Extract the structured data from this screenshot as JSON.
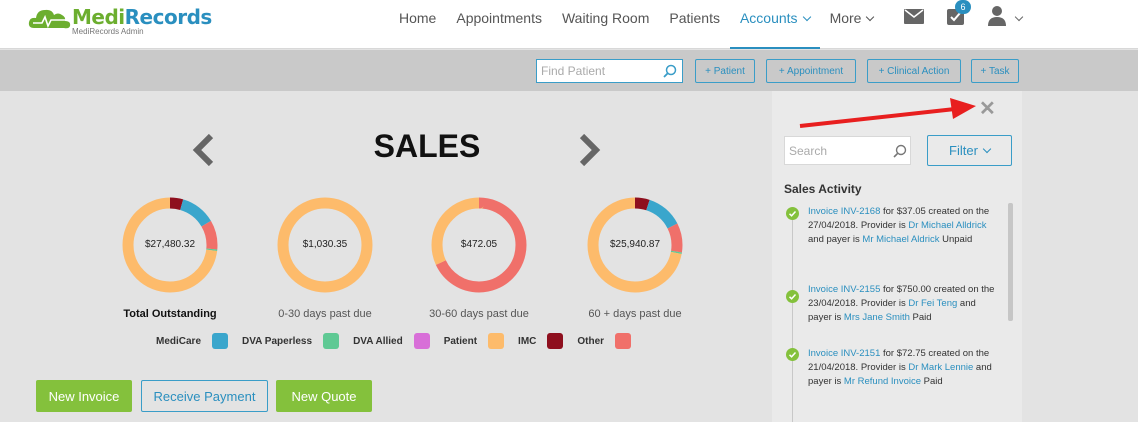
{
  "brand": {
    "name_part1": "Medi",
    "name_part2": "Records",
    "subtitle": "MediRecords Admin"
  },
  "nav": {
    "items": [
      {
        "label": "Home",
        "active": false,
        "dropdown": false
      },
      {
        "label": "Appointments",
        "active": false,
        "dropdown": false
      },
      {
        "label": "Waiting Room",
        "active": false,
        "dropdown": false
      },
      {
        "label": "Patients",
        "active": false,
        "dropdown": false
      },
      {
        "label": "Accounts",
        "active": true,
        "dropdown": true
      },
      {
        "label": "More",
        "active": false,
        "dropdown": true
      }
    ],
    "icons": [
      "mail-icon",
      "tasks-icon",
      "user-icon"
    ],
    "task_badge": "6"
  },
  "action_bar": {
    "find_placeholder": "Find Patient",
    "buttons": [
      "+ Patient",
      "+ Appointment",
      "+ Clinical Action",
      "+ Task"
    ]
  },
  "sales": {
    "title": "SALES",
    "donuts": [
      {
        "value": "$27,480.32",
        "label": "Total Outstanding",
        "bold": true,
        "segments": [
          {
            "category": "IMC",
            "fraction": 0.045
          },
          {
            "category": "MediCare",
            "fraction": 0.12
          },
          {
            "category": "Other",
            "fraction": 0.1
          },
          {
            "category": "DVA Paperless",
            "fraction": 0.005
          },
          {
            "category": "Patient",
            "fraction": 0.73
          }
        ]
      },
      {
        "value": "$1,030.35",
        "label": "0-30 days past due",
        "bold": false,
        "segments": [
          {
            "category": "Patient",
            "fraction": 1.0
          }
        ]
      },
      {
        "value": "$472.05",
        "label": "30-60 days past due",
        "bold": false,
        "segments": [
          {
            "category": "Other",
            "fraction": 0.68
          },
          {
            "category": "Patient",
            "fraction": 0.32
          }
        ]
      },
      {
        "value": "$25,940.87",
        "label": "60 + days past due",
        "bold": false,
        "segments": [
          {
            "category": "IMC",
            "fraction": 0.05
          },
          {
            "category": "MediCare",
            "fraction": 0.125
          },
          {
            "category": "Other",
            "fraction": 0.1
          },
          {
            "category": "DVA Paperless",
            "fraction": 0.005
          },
          {
            "category": "Patient",
            "fraction": 0.72
          }
        ]
      }
    ],
    "legend": [
      {
        "label": "MediCare",
        "color": "#3aa6cc"
      },
      {
        "label": "DVA Paperless",
        "color": "#5fc994"
      },
      {
        "label": "DVA Allied",
        "color": "#d86fd8"
      },
      {
        "label": "Patient",
        "color": "#fdbb6b"
      },
      {
        "label": "IMC",
        "color": "#8e0f1e"
      },
      {
        "label": "Other",
        "color": "#f0706a"
      }
    ],
    "buttons": {
      "new_invoice": "New Invoice",
      "receive_payment": "Receive Payment",
      "new_quote": "New Quote"
    }
  },
  "side_panel": {
    "close_icon": "close-icon",
    "search_placeholder": "Search",
    "filter_label": "Filter",
    "activity_title": "Sales Activity",
    "activities": [
      {
        "p1": "Invoice INV-2168",
        "p2": " for $37.05 created on the 27/04/2018. Provider is ",
        "p3": "Dr Michael Alldrick",
        "p4": " and payer is ",
        "p5": "Mr Michael Aldrick",
        "p6": " Unpaid"
      },
      {
        "p1": "Invoice INV-2155",
        "p2": " for $750.00 created on the 23/04/2018. Provider is ",
        "p3": "Dr Fei Teng",
        "p4": " and payer is ",
        "p5": "Mrs Jane Smith",
        "p6": " Paid"
      },
      {
        "p1": "Invoice INV-2151",
        "p2": " for $72.75 created on the 21/04/2018. Provider is ",
        "p3": "Dr Mark Lennie",
        "p4": " and payer is ",
        "p5": "Mr Refund Invoice",
        "p6": " Paid"
      }
    ]
  },
  "colors": {
    "accent": "#2a8fbf",
    "green": "#84c13c",
    "annotation_arrow": "#e81f1f"
  }
}
